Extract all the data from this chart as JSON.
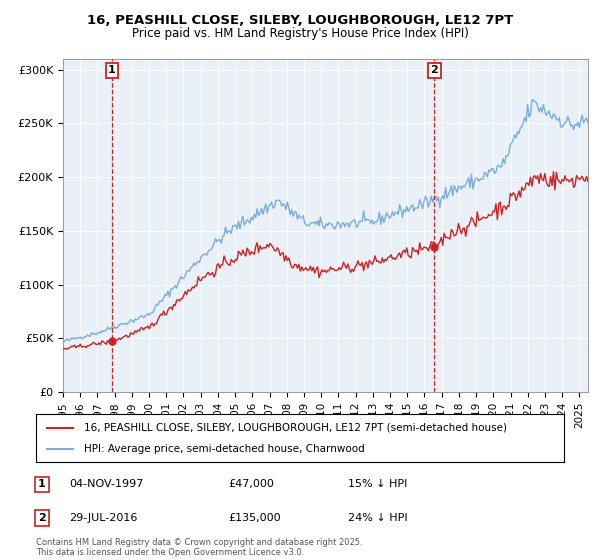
{
  "title_line1": "16, PEASHILL CLOSE, SILEBY, LOUGHBOROUGH, LE12 7PT",
  "title_line2": "Price paid vs. HM Land Registry's House Price Index (HPI)",
  "ylim": [
    0,
    310000
  ],
  "yticks": [
    0,
    50000,
    100000,
    150000,
    200000,
    250000,
    300000
  ],
  "ytick_labels": [
    "£0",
    "£50K",
    "£100K",
    "£150K",
    "£200K",
    "£250K",
    "£300K"
  ],
  "hpi_color": "#7aaddb",
  "price_color": "#cc2222",
  "vline_color": "#cc2222",
  "background_color": "#ffffff",
  "plot_bg_color": "#eaf0f8",
  "grid_color": "#ffffff",
  "legend_label_price": "16, PEASHILL CLOSE, SILEBY, LOUGHBOROUGH, LE12 7PT (semi-detached house)",
  "legend_label_hpi": "HPI: Average price, semi-detached house, Charnwood",
  "annotation1_num": "1",
  "annotation1_date": "04-NOV-1997",
  "annotation1_price": "£47,000",
  "annotation1_hpi": "15% ↓ HPI",
  "annotation2_num": "2",
  "annotation2_date": "29-JUL-2016",
  "annotation2_price": "£135,000",
  "annotation2_hpi": "24% ↓ HPI",
  "footer": "Contains HM Land Registry data © Crown copyright and database right 2025.\nThis data is licensed under the Open Government Licence v3.0.",
  "sale1_x": 1997.84,
  "sale1_y": 47000,
  "sale2_x": 2016.58,
  "sale2_y": 135000,
  "xmin": 1995.0,
  "xmax": 2025.5
}
